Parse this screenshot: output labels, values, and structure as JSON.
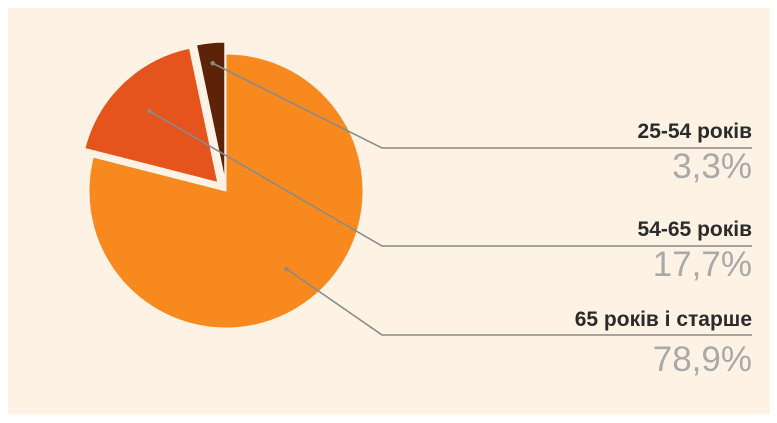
{
  "chart_data": {
    "type": "pie",
    "title": "",
    "slices": [
      {
        "label": "25-54 років",
        "value": 3.3,
        "value_label": "3,3%",
        "color": "#5c2308",
        "exploded": true
      },
      {
        "label": "54-65 років",
        "value": 17.7,
        "value_label": "17,7%",
        "color": "#e4541c",
        "exploded": true
      },
      {
        "label": "65 років і старше",
        "value": 78.9,
        "value_label": "78,9%",
        "color": "#f7891f",
        "exploded": false
      }
    ],
    "background": "#fdf2e4",
    "leader_line_color": "#8a8a8a",
    "legend_placement": "right"
  }
}
